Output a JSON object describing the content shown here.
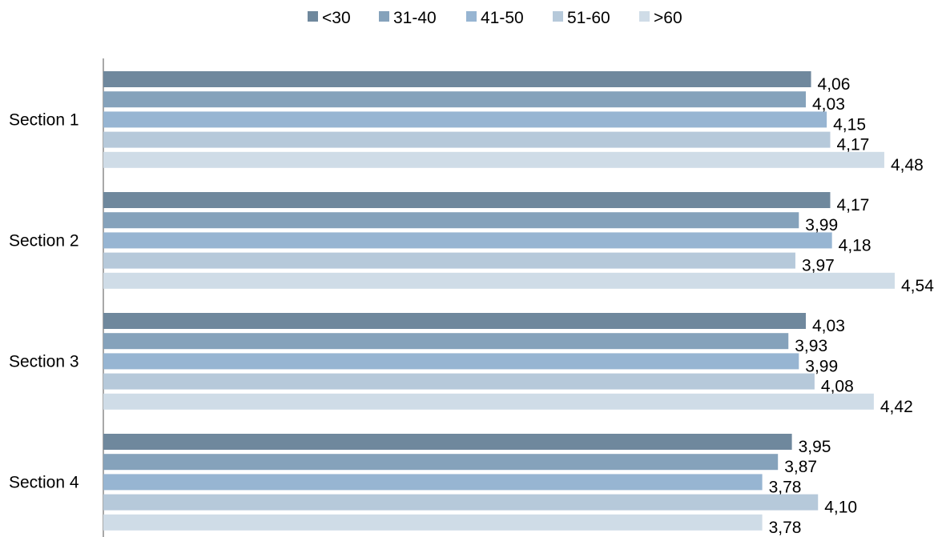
{
  "chart_data": {
    "type": "bar",
    "orientation": "horizontal",
    "categories": [
      "Section 1",
      "Section 2",
      "Section 3",
      "Section 4"
    ],
    "series": [
      {
        "name": "<30",
        "color": "#6f889d",
        "values": [
          4.06,
          4.17,
          4.03,
          3.95
        ],
        "labels": [
          "4,06",
          "4,17",
          "4,03",
          "3,95"
        ]
      },
      {
        "name": "31-40",
        "color": "#85a2bb",
        "values": [
          4.03,
          3.99,
          3.93,
          3.87
        ],
        "labels": [
          "4,03",
          "3,99",
          "3,93",
          "3,87"
        ]
      },
      {
        "name": "41-50",
        "color": "#97b5d2",
        "values": [
          4.15,
          4.18,
          3.99,
          3.78
        ],
        "labels": [
          "4,15",
          "4,18",
          "3,99",
          "3,78"
        ]
      },
      {
        "name": "51-60",
        "color": "#b6c9da",
        "values": [
          4.17,
          3.97,
          4.08,
          4.1
        ],
        "labels": [
          "4,17",
          "3,97",
          "4,08",
          "4,10"
        ]
      },
      {
        "name": ">60",
        "color": "#cfdce7",
        "values": [
          4.48,
          4.54,
          4.42,
          3.78
        ],
        "labels": [
          "4,48",
          "4,54",
          "4,42",
          "3,78"
        ]
      }
    ],
    "title": "",
    "xlabel": "",
    "ylabel": "",
    "xlim": [
      0,
      4.54
    ],
    "grid": false,
    "legend": "top-center"
  }
}
